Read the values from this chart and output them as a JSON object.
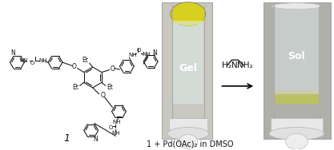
{
  "background_color": "#ffffff",
  "bottom_label": "1 + Pd(OAc)₂ in DMSO",
  "gel_label": "Gel",
  "sol_label": "Sol",
  "diamine_line1": "H₂N",
  "diamine_line2": "NH₂",
  "struct_color": "#111111",
  "photo1_bg": "#c8c8c0",
  "photo2_bg": "#b0b0aa",
  "tube_body_color": "#e8eeee",
  "tube_edge_color": "#aaaaaa",
  "gel_yellow": "#d8d020",
  "sol_yellow_band": "#b8b830",
  "cap_color": "#e8e8e8",
  "cap_edge": "#bbbbbb",
  "label_fontsize": 8,
  "small_fontsize": 7,
  "arrow_fontsize": 7.5
}
